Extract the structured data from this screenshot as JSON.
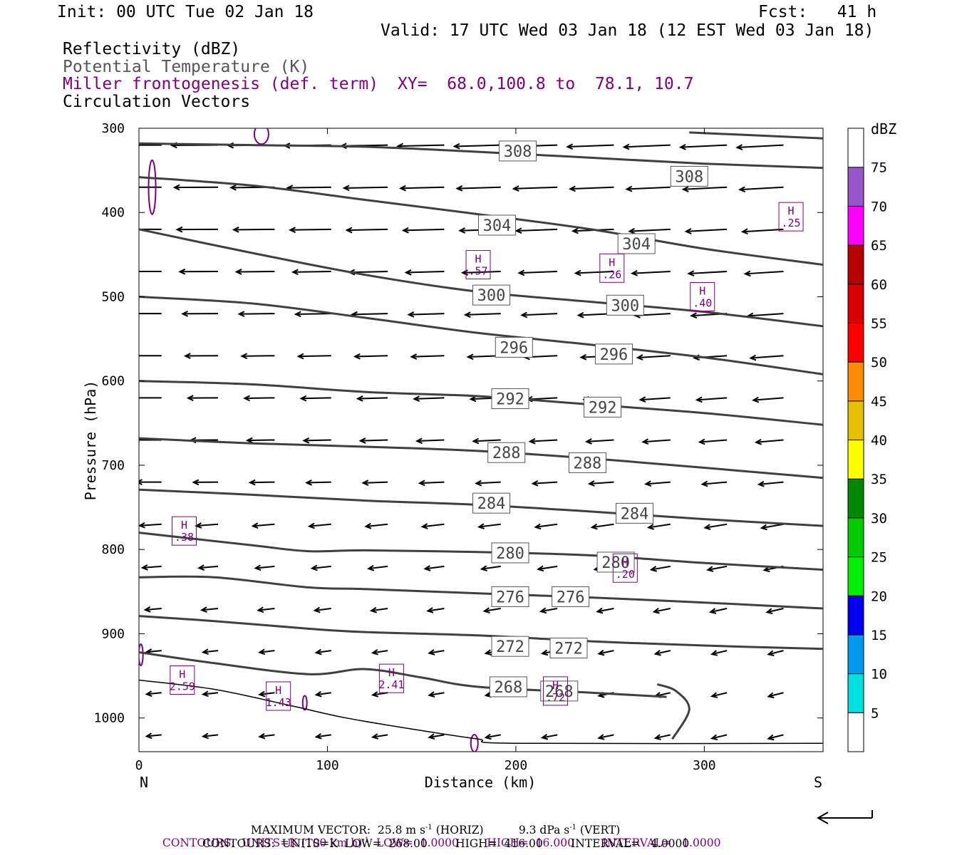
{
  "header": {
    "init": "Init: 00 UTC Tue 02 Jan 18",
    "fcst": "Fcst:   41 h",
    "valid": "Valid: 17 UTC Wed 03 Jan 18 (12 EST Wed 03 Jan 18)",
    "fields": [
      {
        "label": "Reflectivity (dBZ)",
        "color": "#000000"
      },
      {
        "label": "Potential Temperature (K)",
        "color": "#555555"
      },
      {
        "label": "Miller frontogenesis (def. term)",
        "color": "#800080"
      },
      {
        "label": "Circulation Vectors",
        "color": "#000000"
      }
    ],
    "xy_label": "XY=  68.0,100.8 to  78.1, 10.7"
  },
  "chart_data": {
    "type": "line",
    "xlabel": "Distance (km)",
    "ylabel": "Pressure (hPa)",
    "xlim": [
      0,
      363
    ],
    "ylim": [
      1040,
      300
    ],
    "xticks": [
      0,
      100,
      200,
      300
    ],
    "yticks": [
      300,
      400,
      500,
      600,
      700,
      800,
      900,
      1000
    ],
    "left_end_label": "N",
    "right_end_label": "S",
    "theta_contours": [
      {
        "value": 308,
        "points": [
          [
            0,
            318
          ],
          [
            60,
            320
          ],
          [
            120,
            322
          ],
          [
            180,
            328
          ],
          [
            240,
            335
          ],
          [
            300,
            342
          ],
          [
            363,
            347
          ]
        ],
        "labels": [
          [
            201,
            327
          ],
          [
            292,
            357
          ]
        ]
      },
      {
        "value": 304,
        "points": [
          [
            0,
            358
          ],
          [
            60,
            368
          ],
          [
            120,
            385
          ],
          [
            180,
            402
          ],
          [
            240,
            420
          ],
          [
            300,
            443
          ],
          [
            363,
            462
          ]
        ],
        "labels": [
          [
            190,
            415
          ],
          [
            264,
            437
          ]
        ]
      },
      {
        "value": 300,
        "points": [
          [
            0,
            420
          ],
          [
            60,
            448
          ],
          [
            120,
            474
          ],
          [
            180,
            494
          ],
          [
            240,
            506
          ],
          [
            300,
            518
          ],
          [
            363,
            535
          ]
        ],
        "labels": [
          [
            187,
            498
          ],
          [
            258,
            510
          ]
        ]
      },
      {
        "value": 296,
        "points": [
          [
            0,
            500
          ],
          [
            60,
            508
          ],
          [
            120,
            525
          ],
          [
            180,
            543
          ],
          [
            240,
            557
          ],
          [
            300,
            572
          ],
          [
            363,
            592
          ]
        ],
        "labels": [
          [
            199,
            560
          ],
          [
            252,
            568
          ]
        ]
      },
      {
        "value": 292,
        "points": [
          [
            0,
            600
          ],
          [
            60,
            604
          ],
          [
            120,
            613
          ],
          [
            180,
            618
          ],
          [
            240,
            628
          ],
          [
            300,
            638
          ],
          [
            363,
            652
          ]
        ],
        "labels": [
          [
            197,
            621
          ],
          [
            246,
            631
          ]
        ]
      },
      {
        "value": 288,
        "points": [
          [
            0,
            668
          ],
          [
            60,
            674
          ],
          [
            120,
            678
          ],
          [
            180,
            683
          ],
          [
            240,
            692
          ],
          [
            300,
            703
          ],
          [
            363,
            715
          ]
        ],
        "labels": [
          [
            195,
            685
          ],
          [
            238,
            697
          ]
        ]
      },
      {
        "value": 284,
        "points": [
          [
            0,
            729
          ],
          [
            60,
            735
          ],
          [
            120,
            742
          ],
          [
            180,
            747
          ],
          [
            240,
            755
          ],
          [
            300,
            764
          ],
          [
            363,
            772
          ]
        ],
        "labels": [
          [
            187,
            745
          ],
          [
            263,
            757
          ]
        ]
      },
      {
        "value": 280,
        "points": [
          [
            0,
            780
          ],
          [
            60,
            795
          ],
          [
            90,
            802
          ],
          [
            120,
            801
          ],
          [
            180,
            803
          ],
          [
            240,
            807
          ],
          [
            300,
            816
          ],
          [
            363,
            824
          ]
        ],
        "labels": [
          [
            197,
            804
          ],
          [
            253,
            815
          ]
        ]
      },
      {
        "value": 276,
        "points": [
          [
            0,
            833
          ],
          [
            40,
            833
          ],
          [
            90,
            845
          ],
          [
            120,
            847
          ],
          [
            180,
            852
          ],
          [
            240,
            857
          ],
          [
            300,
            863
          ],
          [
            363,
            870
          ]
        ],
        "labels": [
          [
            197,
            856
          ],
          [
            229,
            856
          ]
        ]
      },
      {
        "value": 272,
        "points": [
          [
            0,
            879
          ],
          [
            40,
            885
          ],
          [
            90,
            894
          ],
          [
            120,
            898
          ],
          [
            180,
            902
          ],
          [
            240,
            909
          ],
          [
            300,
            914
          ],
          [
            363,
            918
          ]
        ],
        "labels": [
          [
            197,
            915
          ],
          [
            228,
            917
          ]
        ]
      },
      {
        "value": 268,
        "points": [
          [
            0,
            922
          ],
          [
            40,
            935
          ],
          [
            90,
            948
          ],
          [
            120,
            942
          ],
          [
            150,
            952
          ],
          [
            180,
            963
          ],
          [
            240,
            970
          ],
          [
            280,
            975
          ]
        ],
        "labels": [
          [
            196,
            963
          ],
          [
            223,
            968
          ]
        ]
      }
    ],
    "frontogenesis_maxima": [
      {
        "label": "H",
        "value": ".25",
        "x": 346,
        "y": 405
      },
      {
        "label": "H",
        "value": ".57",
        "x": 180,
        "y": 462
      },
      {
        "label": "H",
        "value": ".26",
        "x": 251,
        "y": 466
      },
      {
        "label": "H",
        "value": ".40",
        "x": 299,
        "y": 500
      },
      {
        "label": "H",
        "value": ".38",
        "x": 24,
        "y": 778
      },
      {
        "label": "H",
        "value": ".20",
        "x": 258,
        "y": 822
      },
      {
        "label": "H",
        "value": "2.59",
        "x": 23,
        "y": 955
      },
      {
        "label": "H",
        "value": "2.41",
        "x": 134,
        "y": 953
      },
      {
        "label": "H",
        "value": "1.43",
        "x": 74,
        "y": 974
      },
      {
        "label": "H",
        "value": ".72",
        "x": 221,
        "y": 968
      }
    ],
    "colorbar": {
      "title": "dBZ",
      "levels": [
        5,
        10,
        15,
        20,
        25,
        30,
        35,
        40,
        45,
        50,
        55,
        60,
        65,
        70,
        75
      ],
      "colors": [
        "#ffffff",
        "#00e0e0",
        "#0099ee",
        "#0000ee",
        "#00ee00",
        "#00cc00",
        "#008800",
        "#ffff00",
        "#e6c000",
        "#ff8c00",
        "#ff0000",
        "#d80000",
        "#b80000",
        "#ff00ff",
        "#9955cc",
        "#ffffff"
      ]
    }
  },
  "footer": {
    "max_vector": "MAXIMUM VECTOR:  25.8 m s",
    "max_vector_horiz": "(HORIZ)",
    "max_vector_vert": "9.3 dPa s",
    "max_vector_vert_tail": "(VERT)",
    "superscript": "-1",
    "contours1_pre": "CONTOURS:  UNITS=K (100 km h)",
    "contours1_post": "  LOW=  1.0000        HIGH=  16.000        INTERVAL=   1.0000",
    "contours2": "CONTOURS:  UNITS=K  LOW=  268.00        HIGH=  416.00        INTERVAL=   4.0000"
  }
}
